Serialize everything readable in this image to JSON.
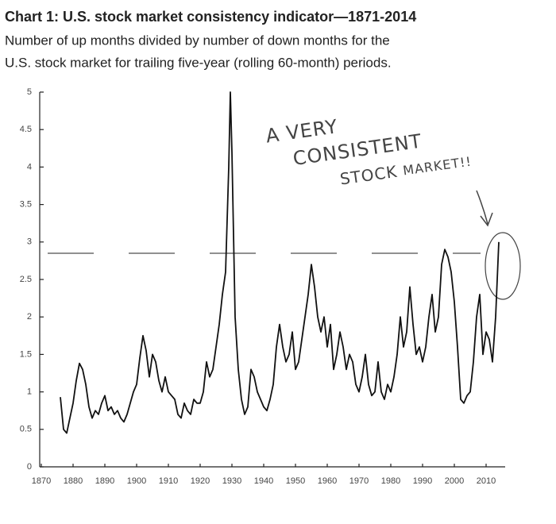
{
  "chart_data": {
    "type": "line",
    "title": "Chart 1: U.S. stock market consistency indicator—1871-2014",
    "subtitle": [
      "Number of up months divided by number of down months for the",
      "U.S. stock market for trailing five-year (rolling 60-month) periods."
    ],
    "annotation": [
      "A VERY",
      "CONSISTENT",
      "STOCK",
      "MARKET!!"
    ],
    "reference_line": 2.85,
    "xlim": [
      1870,
      2016
    ],
    "ylim": [
      0,
      5
    ],
    "xticks": [
      1870,
      1880,
      1890,
      1900,
      1910,
      1920,
      1930,
      1940,
      1950,
      1960,
      1970,
      1980,
      1990,
      2000,
      2010
    ],
    "yticks": [
      0,
      0.5,
      1,
      1.5,
      2,
      2.5,
      3,
      3.5,
      4,
      4.5,
      5
    ],
    "color": "#111111",
    "x": [
      1876,
      1877,
      1878,
      1879,
      1880,
      1881,
      1882,
      1883,
      1884,
      1885,
      1886,
      1887,
      1888,
      1889,
      1890,
      1891,
      1892,
      1893,
      1894,
      1895,
      1896,
      1897,
      1898,
      1899,
      1900,
      1901,
      1902,
      1903,
      1904,
      1905,
      1906,
      1907,
      1908,
      1909,
      1910,
      1911,
      1912,
      1913,
      1914,
      1915,
      1916,
      1917,
      1918,
      1919,
      1920,
      1921,
      1922,
      1923,
      1924,
      1925,
      1926,
      1927,
      1928,
      1929,
      1929.5,
      1930,
      1931,
      1932,
      1933,
      1934,
      1935,
      1936,
      1937,
      1938,
      1939,
      1940,
      1941,
      1942,
      1943,
      1944,
      1945,
      1946,
      1947,
      1948,
      1949,
      1950,
      1951,
      1952,
      1953,
      1954,
      1955,
      1956,
      1957,
      1958,
      1959,
      1960,
      1961,
      1962,
      1963,
      1964,
      1965,
      1966,
      1967,
      1968,
      1969,
      1970,
      1971,
      1972,
      1973,
      1974,
      1975,
      1976,
      1977,
      1978,
      1979,
      1980,
      1981,
      1982,
      1983,
      1984,
      1985,
      1986,
      1987,
      1988,
      1989,
      1990,
      1991,
      1992,
      1993,
      1994,
      1995,
      1996,
      1997,
      1998,
      1999,
      2000,
      2001,
      2002,
      2003,
      2004,
      2005,
      2006,
      2007,
      2008,
      2009,
      2010,
      2011,
      2012,
      2013,
      2014
    ],
    "values": [
      0.93,
      0.5,
      0.45,
      0.65,
      0.85,
      1.15,
      1.38,
      1.3,
      1.1,
      0.8,
      0.65,
      0.75,
      0.7,
      0.85,
      0.95,
      0.75,
      0.8,
      0.7,
      0.75,
      0.65,
      0.6,
      0.7,
      0.85,
      1.0,
      1.1,
      1.45,
      1.75,
      1.55,
      1.2,
      1.5,
      1.4,
      1.15,
      1.0,
      1.2,
      1.0,
      0.95,
      0.9,
      0.7,
      0.65,
      0.85,
      0.75,
      0.7,
      0.9,
      0.85,
      0.85,
      1.0,
      1.4,
      1.2,
      1.3,
      1.6,
      1.9,
      2.3,
      2.6,
      4.0,
      5.0,
      4.2,
      2.0,
      1.3,
      0.9,
      0.7,
      0.8,
      1.3,
      1.2,
      1.0,
      0.9,
      0.8,
      0.75,
      0.9,
      1.1,
      1.6,
      1.9,
      1.6,
      1.4,
      1.5,
      1.8,
      1.3,
      1.4,
      1.7,
      2.0,
      2.3,
      2.7,
      2.4,
      2.0,
      1.8,
      2.0,
      1.6,
      1.9,
      1.3,
      1.5,
      1.8,
      1.6,
      1.3,
      1.5,
      1.4,
      1.1,
      1.0,
      1.2,
      1.5,
      1.1,
      0.95,
      1.0,
      1.4,
      1.0,
      0.9,
      1.1,
      1.0,
      1.2,
      1.5,
      2.0,
      1.6,
      1.8,
      2.4,
      1.9,
      1.5,
      1.6,
      1.4,
      1.6,
      2.0,
      2.3,
      1.8,
      2.0,
      2.7,
      2.9,
      2.8,
      2.6,
      2.2,
      1.6,
      0.9,
      0.85,
      0.95,
      1.0,
      1.4,
      2.0,
      2.3,
      1.5,
      1.8,
      1.7,
      1.4,
      2.0,
      3.0
    ]
  }
}
